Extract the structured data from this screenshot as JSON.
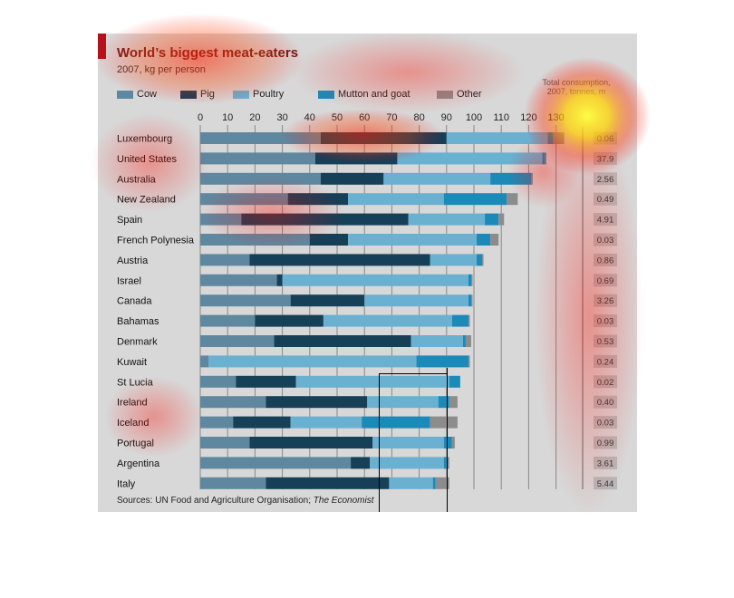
{
  "header": {
    "title": "World’s biggest meat-eaters",
    "subtitle": "2007, kg per person",
    "total_header_line1": "Total consumption,",
    "total_header_line2": "2007, tonnes, m"
  },
  "footer": {
    "sources_prefix": "Sources: UN Food and Agriculture Organisation; ",
    "sources_italic": "The Economist"
  },
  "colors": {
    "accent": "#b3121c",
    "title": "#6e1a1a",
    "panel": "#d8d8d8",
    "gridline": "#888888",
    "total_box": "#b8b8b8"
  },
  "chart_data": {
    "type": "bar",
    "orientation": "horizontal",
    "stacked": true,
    "title": "World’s biggest meat-eaters",
    "subtitle": "2007, kg per person",
    "xlim": [
      0,
      135
    ],
    "xticks": [
      0,
      10,
      20,
      30,
      40,
      50,
      60,
      70,
      80,
      90,
      100,
      110,
      120,
      130
    ],
    "grid": true,
    "legend_position": "top",
    "legend": [
      {
        "name": "Cow",
        "color": "#5f88a0"
      },
      {
        "name": "Pig",
        "color": "#163f58"
      },
      {
        "name": "Poultry",
        "color": "#6ab0d0"
      },
      {
        "name": "Mutton and goat",
        "color": "#1c8ab8"
      },
      {
        "name": "Other",
        "color": "#8c8c8c"
      }
    ],
    "categories": [
      "Luxembourg",
      "United States",
      "Australia",
      "New Zealand",
      "Spain",
      "French Polynesia",
      "Austria",
      "Israel",
      "Canada",
      "Bahamas",
      "Denmark",
      "Kuwait",
      "St Lucia",
      "Ireland",
      "Iceland",
      "Portugal",
      "Argentina",
      "Italy"
    ],
    "series": [
      {
        "name": "Cow",
        "values": [
          44,
          42,
          44,
          32,
          15,
          40,
          18,
          28,
          33,
          20,
          27,
          3,
          13,
          24,
          12,
          18,
          55,
          24
        ]
      },
      {
        "name": "Pig",
        "values": [
          46,
          30,
          23,
          22,
          61,
          14,
          66,
          2,
          27,
          25,
          50,
          0,
          22,
          37,
          21,
          45,
          7,
          45
        ]
      },
      {
        "name": "Poultry",
        "values": [
          37,
          53,
          39,
          35,
          28,
          47,
          17,
          68,
          38,
          47,
          19,
          76,
          56,
          26,
          26,
          26,
          27,
          16
        ]
      },
      {
        "name": "Mutton and goat",
        "values": [
          2,
          1,
          15,
          23,
          5,
          5,
          2,
          1,
          1,
          6,
          1,
          19,
          4,
          4,
          25,
          3,
          1,
          1
        ]
      },
      {
        "name": "Other",
        "values": [
          4,
          0.5,
          0.5,
          4,
          2,
          3,
          0.5,
          0.5,
          0.5,
          0.5,
          2,
          0.5,
          0,
          3,
          10,
          1,
          1,
          5
        ]
      }
    ],
    "total_consumption_label": "Total consumption, 2007, tonnes, m",
    "total_consumption": [
      "0.06",
      "37.9",
      "2.56",
      "0.49",
      "4.91",
      "0.03",
      "0.86",
      "0.69",
      "3.26",
      "0.03",
      "0.53",
      "0.24",
      "0.02",
      "0.40",
      "0.03",
      "0.99",
      "3.61",
      "5.44"
    ]
  }
}
